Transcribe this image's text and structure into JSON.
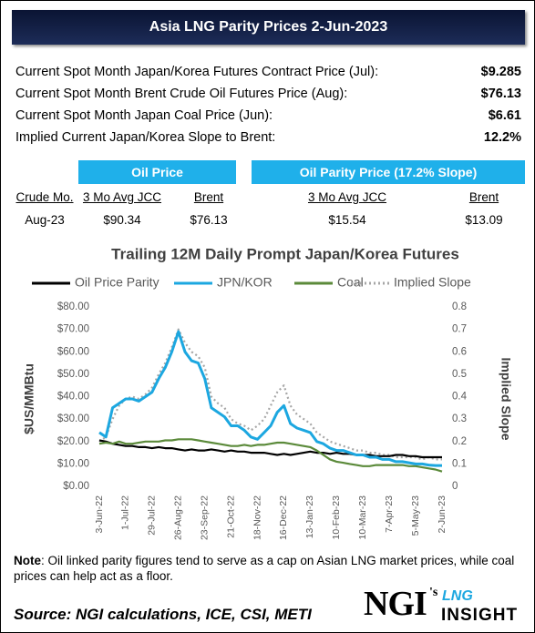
{
  "header": {
    "title": "Asia LNG Parity Prices 2-Jun-2023"
  },
  "summary": {
    "rows": [
      [
        "Current Spot Month Japan/Korea Futures Contract Price (Jul):",
        "$9.285"
      ],
      [
        "Current Spot Month Brent Crude Oil Futures Price (Aug):",
        "$76.13"
      ],
      [
        "Current Spot Month Japan Coal Price (Jun):",
        "$6.61"
      ],
      [
        "Implied Current Japan/Korea Slope to Brent:",
        "12.2%"
      ]
    ]
  },
  "table": {
    "groups": [
      "Oil Price",
      "Oil Parity Price (17.2% Slope)"
    ],
    "columns": [
      "Crude Mo.",
      "3 Mo Avg JCC",
      "Brent",
      "3 Mo Avg JCC",
      "Brent"
    ],
    "rows": [
      [
        "Aug-23",
        "$90.34",
        "$76.13",
        "$15.54",
        "$13.09"
      ]
    ]
  },
  "chart_data": {
    "type": "line",
    "title": "Trailing 12M Daily Prompt Japan/Korea Futures",
    "y_label": "$US/MMBtu",
    "y2_label": "Implied Slope",
    "categories": [
      "3-Jun-22",
      null,
      null,
      null,
      "1-Jul-22",
      null,
      null,
      null,
      "29-Jul-22",
      null,
      null,
      null,
      "26-Aug-22",
      null,
      null,
      null,
      "23-Sep-22",
      null,
      null,
      null,
      "21-Oct-22",
      null,
      null,
      null,
      "18-Nov-22",
      null,
      null,
      null,
      "16-Dec-22",
      null,
      null,
      null,
      "13-Jan-23",
      null,
      null,
      null,
      "10-Feb-23",
      null,
      null,
      null,
      "10-Mar-23",
      null,
      null,
      null,
      "7-Apr-23",
      null,
      null,
      null,
      "5-May-23",
      null,
      null,
      null,
      "2-Jun-23"
    ],
    "ylim": [
      0,
      80
    ],
    "yticks": [
      {
        "value": 0,
        "label": "$0.00"
      },
      {
        "value": 10,
        "label": "$10.00"
      },
      {
        "value": 20,
        "label": "$20.00"
      },
      {
        "value": 30,
        "label": "$30.00"
      },
      {
        "value": 40,
        "label": "$40.00"
      },
      {
        "value": 50,
        "label": "$50.00"
      },
      {
        "value": 60,
        "label": "$60.00"
      },
      {
        "value": 70,
        "label": "$70.00"
      },
      {
        "value": 80,
        "label": "$80.00"
      }
    ],
    "y2lim": [
      0,
      0.8
    ],
    "y2ticks": [
      0,
      0.1,
      0.2,
      0.3,
      0.4,
      0.5,
      0.6,
      0.7,
      0.8
    ],
    "grid": false,
    "series": [
      {
        "name": "Oil Price Parity",
        "color": "#000000",
        "line_style": "solid",
        "values": [
          20.5,
          20,
          19,
          18.5,
          18,
          18,
          17.5,
          17.5,
          17,
          17.5,
          17,
          17,
          16.5,
          16,
          16.5,
          16,
          16,
          16.5,
          16,
          15.5,
          16,
          15.5,
          15.5,
          15,
          15,
          15,
          14.5,
          14,
          14.5,
          14,
          14.5,
          15,
          15.5,
          15,
          15,
          14.5,
          15,
          14.5,
          14.5,
          14,
          14,
          14,
          13.5,
          13.5,
          13.5,
          14,
          14,
          13.5,
          13.5,
          13,
          13,
          13,
          13
        ]
      },
      {
        "name": "JPN/KOR",
        "color": "#1ca7e0",
        "line_style": "solid",
        "values": [
          24,
          22,
          35,
          37,
          39,
          39,
          38,
          40,
          42,
          48,
          53,
          60,
          69,
          60,
          56,
          55,
          48,
          35,
          33,
          31,
          27,
          27,
          25,
          22,
          21,
          24,
          27,
          33,
          36,
          28,
          26,
          25,
          24,
          20,
          19,
          17,
          16,
          16,
          15,
          14,
          14,
          13,
          13,
          12,
          12,
          11,
          11,
          10.5,
          10,
          10,
          9.5,
          9.3,
          9.3
        ]
      },
      {
        "name": "Coal",
        "color": "#5b8a3a",
        "line_style": "solid",
        "values": [
          19,
          19.5,
          19,
          20,
          19,
          19,
          19.5,
          20,
          20,
          20,
          20.5,
          20.5,
          21,
          21,
          21,
          20.5,
          20,
          19.5,
          19,
          18.5,
          18,
          18,
          18.5,
          18,
          18.5,
          18.5,
          19,
          19.5,
          19.5,
          19,
          18.5,
          18,
          17.5,
          16,
          14,
          12,
          11,
          10.5,
          10,
          9.5,
          9,
          9,
          9.5,
          9.5,
          9.5,
          9.5,
          9.5,
          9,
          9,
          8.5,
          8,
          7.5,
          6.6
        ]
      },
      {
        "name": "Implied Slope",
        "color": "#a6a6a6",
        "line_style": "dotted",
        "axis": "y2",
        "values": [
          0.2,
          0.22,
          0.3,
          0.36,
          0.39,
          0.4,
          0.39,
          0.41,
          0.44,
          0.5,
          0.55,
          0.62,
          0.7,
          0.64,
          0.6,
          0.58,
          0.53,
          0.4,
          0.37,
          0.35,
          0.3,
          0.28,
          0.27,
          0.25,
          0.27,
          0.3,
          0.36,
          0.42,
          0.45,
          0.36,
          0.32,
          0.3,
          0.28,
          0.24,
          0.22,
          0.2,
          0.19,
          0.18,
          0.17,
          0.16,
          0.16,
          0.15,
          0.15,
          0.14,
          0.14,
          0.13,
          0.13,
          0.13,
          0.13,
          0.12,
          0.13,
          0.12,
          0.12
        ]
      }
    ]
  },
  "note": {
    "label": "Note",
    "text": ": Oil linked parity figures tend to serve as a cap on Asian LNG market prices, while coal prices can help act as a floor."
  },
  "source": "Source: NGI calculations, ICE, CSI, METI",
  "logo": {
    "brand": "NGI",
    "suffix": "'s",
    "top": "LNG",
    "bottom": "INSIGHT"
  }
}
